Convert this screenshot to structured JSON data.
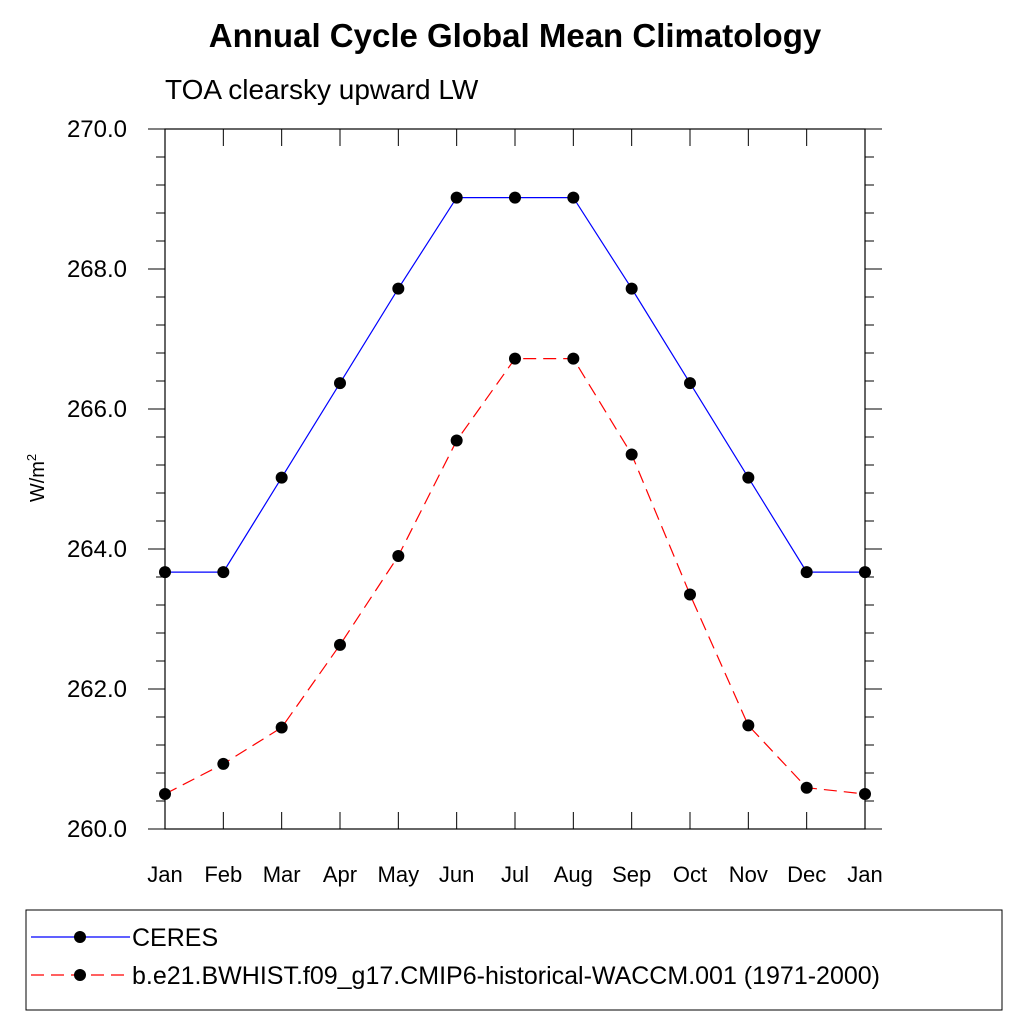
{
  "chart_data": {
    "type": "line",
    "title": "Annual Cycle Global Mean Climatology",
    "subtitle": "TOA clearsky upward LW",
    "ylabel": "W/m",
    "ylabel_sup": "2",
    "xlabel": "",
    "ylim": [
      260.0,
      270.0
    ],
    "yticks": [
      "260.0",
      "262.0",
      "264.0",
      "266.0",
      "268.0",
      "270.0"
    ],
    "categories": [
      "Jan",
      "Feb",
      "Mar",
      "Apr",
      "May",
      "Jun",
      "Jul",
      "Aug",
      "Sep",
      "Oct",
      "Nov",
      "Dec",
      "Jan"
    ],
    "series": [
      {
        "name": "CERES",
        "color": "#0000ff",
        "dash": "solid",
        "values": [
          263.67,
          263.67,
          265.02,
          266.37,
          267.72,
          269.02,
          269.02,
          269.02,
          267.72,
          266.37,
          265.02,
          263.67,
          263.67
        ]
      },
      {
        "name": "b.e21.BWHIST.f09_g17.CMIP6-historical-WACCM.001 (1971-2000)",
        "color": "#ff0000",
        "dash": "dashed",
        "values": [
          260.5,
          260.93,
          261.45,
          262.63,
          263.9,
          265.55,
          266.72,
          266.72,
          265.35,
          263.35,
          261.48,
          260.59,
          260.5
        ]
      }
    ],
    "grid": false,
    "legend_position": "bottom"
  }
}
